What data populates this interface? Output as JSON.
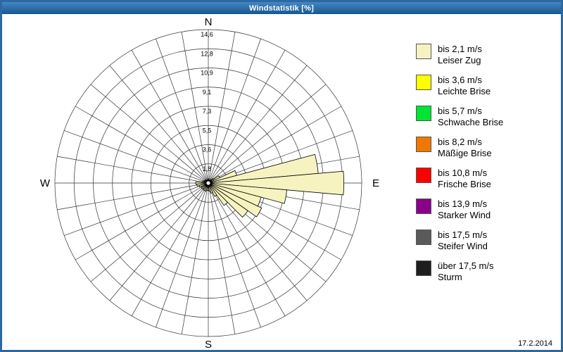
{
  "window": {
    "title": "Windstatistik [%]",
    "date": "17.2.2014",
    "frame_color": "#2E68A0",
    "titlebar_color": "#1E5F9E"
  },
  "legend": {
    "items": [
      {
        "color": "#F7F3C1",
        "speed": "bis 2,1 m/s",
        "name": "Leiser Zug"
      },
      {
        "color": "#FFFF00",
        "speed": "bis 3,6 m/s",
        "name": "Leichte Brise"
      },
      {
        "color": "#00E432",
        "speed": "bis 5,7 m/s",
        "name": "Schwache Brise"
      },
      {
        "color": "#F07800",
        "speed": "bis 8,2 m/s",
        "name": "Mäßige Brise"
      },
      {
        "color": "#FF0000",
        "speed": "bis 10,8 m/s",
        "name": "Frische Brise"
      },
      {
        "color": "#8B008B",
        "speed": "bis 13,9 m/s",
        "name": "Starker Wind"
      },
      {
        "color": "#5A5A5A",
        "speed": "bis 17,5 m/s",
        "name": "Steifer Wind"
      },
      {
        "color": "#1E1E1E",
        "speed": "über 17,5 m/s",
        "name": "Sturm"
      }
    ]
  },
  "chart_data": {
    "type": "wind-rose polar bar",
    "title": "Windstatistik [%]",
    "units": "%",
    "max_value": 14.6,
    "rings": 8,
    "ring_labels": [
      "1,8",
      "3,6",
      "5,5",
      "7,3",
      "9,1",
      "10,9",
      "12,8",
      "14,6"
    ],
    "spoke_step_deg": 10,
    "petal_width_deg": 10,
    "compass": {
      "north": "N",
      "east": "E",
      "south": "S",
      "west": "W"
    },
    "directions_deg": [
      0,
      10,
      20,
      30,
      40,
      50,
      60,
      70,
      80,
      90,
      100,
      110,
      120,
      130,
      140,
      150,
      160,
      170,
      180,
      190,
      200,
      210,
      220,
      230,
      240,
      250,
      260,
      270,
      280,
      290,
      300,
      310,
      320,
      330,
      340,
      350
    ],
    "series": [
      {
        "name": "bis 2,1 m/s",
        "color": "#F7F3C1",
        "values": [
          0.4,
          0.3,
          0.3,
          0.3,
          0.4,
          0.6,
          1.2,
          2.8,
          10.5,
          12.9,
          7.5,
          5.2,
          5.6,
          4.6,
          2.6,
          1.4,
          1.0,
          0.8,
          0.7,
          0.7,
          0.8,
          0.8,
          0.7,
          0.8,
          0.7,
          0.9,
          1.1,
          1.2,
          0.6,
          0.5,
          0.4,
          0.4,
          0.4,
          0.3,
          0.3,
          0.3
        ]
      }
    ]
  }
}
